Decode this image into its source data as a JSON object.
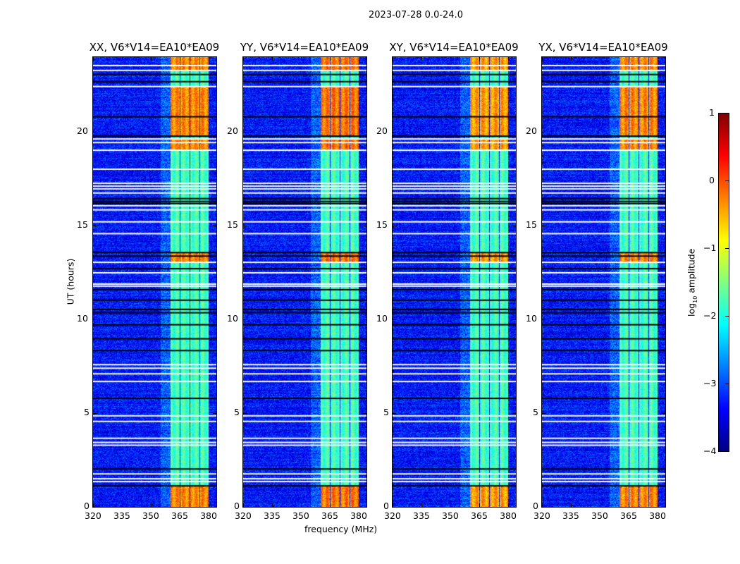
{
  "chart_data": {
    "type": "heatmap",
    "title": "2023-07-28 0.0-24.0",
    "xlabel": "frequency (MHz)",
    "ylabel": "UT (hours)",
    "xlim": [
      320,
      384
    ],
    "ylim": [
      0,
      24
    ],
    "xticks": [
      "320",
      "335",
      "350",
      "365",
      "380"
    ],
    "yticks": [
      "0",
      "5",
      "10",
      "15",
      "20"
    ],
    "xtick_values": [
      320,
      335,
      350,
      365,
      380
    ],
    "ytick_values": [
      0,
      5,
      10,
      15,
      20
    ],
    "panels": [
      {
        "title": "XX, V6*V14=EA10*EA09",
        "bright_level": -0.3
      },
      {
        "title": "YY, V6*V14=EA10*EA09",
        "bright_level": -0.2
      },
      {
        "title": "XY, V6*V14=EA10*EA09",
        "bright_level": -0.4
      },
      {
        "title": "YX, V6*V14=EA10*EA09",
        "bright_level": -0.3
      }
    ],
    "background_level": -3.3,
    "subbands_mhz": [
      [
        360.4,
        365.1
      ],
      [
        365.5,
        370.2
      ],
      [
        370.5,
        375.2
      ],
      [
        375.6,
        379.9
      ]
    ],
    "subband_level": -1.8,
    "bright_epochs_hours": [
      [
        23.3,
        24.0
      ],
      [
        19.8,
        22.4
      ],
      [
        19.0,
        19.6
      ],
      [
        13.1,
        13.6
      ],
      [
        0.0,
        1.1
      ]
    ],
    "flagged_white_hours": [
      23.55,
      23.29,
      22.43,
      19.63,
      19.44,
      19.03,
      18.02,
      17.27,
      17.12,
      16.97,
      16.75,
      16.07,
      15.85,
      15.21,
      14.58,
      13.05,
      12.49,
      11.89,
      11.78,
      7.59,
      7.4,
      7.1,
      6.69,
      4.86,
      4.56,
      3.66,
      3.44,
      3.29,
      1.76,
      1.5,
      1.35
    ],
    "flagged_black_hours": [
      23.07,
      22.69,
      20.82,
      19.78,
      16.45,
      16.3,
      16.19,
      13.57,
      13.38,
      12.71,
      11.59,
      11.03,
      10.54,
      10.36,
      9.72,
      8.97,
      8.34,
      5.79,
      2.02,
      1.12
    ],
    "colorbar": {
      "label": "log",
      "label_sub": "10",
      "label_rest": " amplitude",
      "range": [
        -4,
        1
      ],
      "ticks": [
        "1",
        "0",
        "−1",
        "−2",
        "−3",
        "−4"
      ],
      "tick_values": [
        1,
        0,
        -1,
        -2,
        -3,
        -4
      ],
      "colormap": "jet"
    }
  }
}
